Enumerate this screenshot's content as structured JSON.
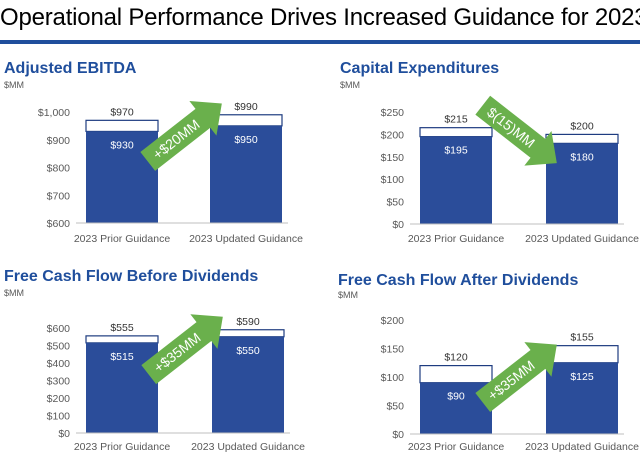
{
  "page": {
    "title": "Operational Performance Drives Increased Guidance for 2023"
  },
  "colors": {
    "bar": "#2b4d9a",
    "bar_outline": "#1e3c80",
    "arrow": "#6ab04c",
    "accent": "#1f4e9c",
    "axis_text": "#595959"
  },
  "chart_data": [
    {
      "id": "ebitda",
      "type": "bar",
      "title": "Adjusted EBITDA",
      "unit": "$MM",
      "categories": [
        "2023 Prior Guidance",
        "2023 Updated Guidance"
      ],
      "series": [
        {
          "name": "",
          "values": [
            930,
            950
          ],
          "labels": [
            "$930",
            "$950"
          ]
        },
        {
          "name": "",
          "values": [
            970,
            990
          ],
          "labels": [
            "$970",
            "$990"
          ]
        }
      ],
      "ylim": [
        600,
        1000
      ],
      "yticks": [
        600,
        700,
        800,
        900,
        1000
      ],
      "ytick_labels": [
        "$600",
        "$700",
        "$800",
        "$900",
        "$1,000"
      ],
      "annotation": "+$20MM",
      "arrow_direction": "up",
      "grid": false
    },
    {
      "id": "capex",
      "type": "bar",
      "title": "Capital Expenditures",
      "unit": "$MM",
      "categories": [
        "2023 Prior Guidance",
        "2023 Updated Guidance"
      ],
      "series": [
        {
          "name": "",
          "values": [
            195,
            180
          ],
          "labels": [
            "$195",
            "$180"
          ]
        },
        {
          "name": "",
          "values": [
            215,
            200
          ],
          "labels": [
            "$215",
            "$200"
          ]
        }
      ],
      "ylim": [
        0,
        250
      ],
      "yticks": [
        0,
        50,
        100,
        150,
        200,
        250
      ],
      "ytick_labels": [
        "$0",
        "$50",
        "$100",
        "$150",
        "$200",
        "$250"
      ],
      "annotation": "$(15)MM",
      "arrow_direction": "down",
      "grid": false
    },
    {
      "id": "fcf_before",
      "type": "bar",
      "title": "Free Cash Flow Before Dividends",
      "unit": "$MM",
      "categories": [
        "2023 Prior Guidance",
        "2023 Updated Guidance"
      ],
      "series": [
        {
          "name": "",
          "values": [
            515,
            550
          ],
          "labels": [
            "$515",
            "$550"
          ]
        },
        {
          "name": "",
          "values": [
            555,
            590
          ],
          "labels": [
            "$555",
            "$590"
          ]
        }
      ],
      "ylim": [
        0,
        600
      ],
      "yticks": [
        0,
        100,
        200,
        300,
        400,
        500,
        600
      ],
      "ytick_labels": [
        "$0",
        "$100",
        "$200",
        "$300",
        "$400",
        "$500",
        "$600"
      ],
      "annotation": "+$35MM",
      "arrow_direction": "up",
      "grid": false
    },
    {
      "id": "fcf_after",
      "type": "bar",
      "title": "Free Cash Flow After Dividends",
      "unit": "$MM",
      "categories": [
        "2023 Prior Guidance",
        "2023 Updated Guidance"
      ],
      "series": [
        {
          "name": "",
          "values": [
            90,
            125
          ],
          "labels": [
            "$90",
            "$125"
          ]
        },
        {
          "name": "",
          "values": [
            120,
            155
          ],
          "labels": [
            "$120",
            "$155"
          ]
        }
      ],
      "ylim": [
        0,
        200
      ],
      "yticks": [
        0,
        50,
        100,
        150,
        200
      ],
      "ytick_labels": [
        "$0",
        "$50",
        "$100",
        "$150",
        "$200"
      ],
      "annotation": "+$35MM",
      "arrow_direction": "up",
      "grid": false
    }
  ]
}
